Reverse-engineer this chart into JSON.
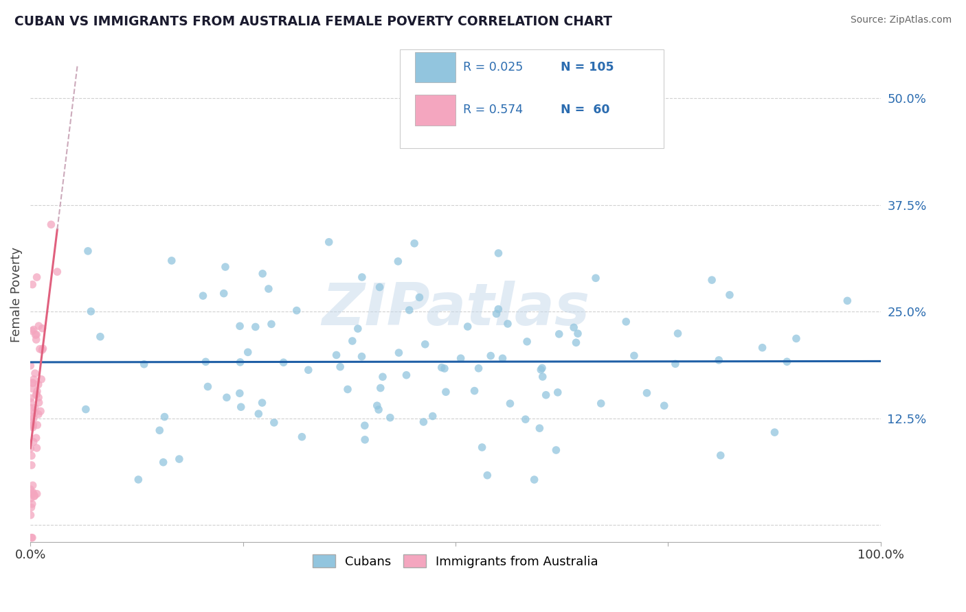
{
  "title": "CUBAN VS IMMIGRANTS FROM AUSTRALIA FEMALE POVERTY CORRELATION CHART",
  "source_text": "Source: ZipAtlas.com",
  "ylabel": "Female Poverty",
  "xlim": [
    0,
    1
  ],
  "ylim": [
    -0.02,
    0.56
  ],
  "yticks": [
    0.0,
    0.125,
    0.25,
    0.375,
    0.5
  ],
  "ytick_labels_right": [
    "",
    "12.5%",
    "25.0%",
    "37.5%",
    "50.0%"
  ],
  "xticks": [
    0.0,
    0.25,
    0.5,
    0.75,
    1.0
  ],
  "xtick_labels": [
    "0.0%",
    "",
    "",
    "",
    "100.0%"
  ],
  "legend_labels": [
    "Cubans",
    "Immigrants from Australia"
  ],
  "blue_color": "#92c5de",
  "pink_color": "#f4a6bf",
  "blue_line_color": "#1f5fa6",
  "pink_line_color": "#e0607e",
  "pink_dash_color": "#ccaabb",
  "R_blue": 0.025,
  "N_blue": 105,
  "R_pink": 0.574,
  "N_pink": 60,
  "watermark": "ZIPatlas",
  "grid_color": "#d0d0d0",
  "annotation_color": "#2b6cb0",
  "seed_blue": 42,
  "seed_pink": 7
}
